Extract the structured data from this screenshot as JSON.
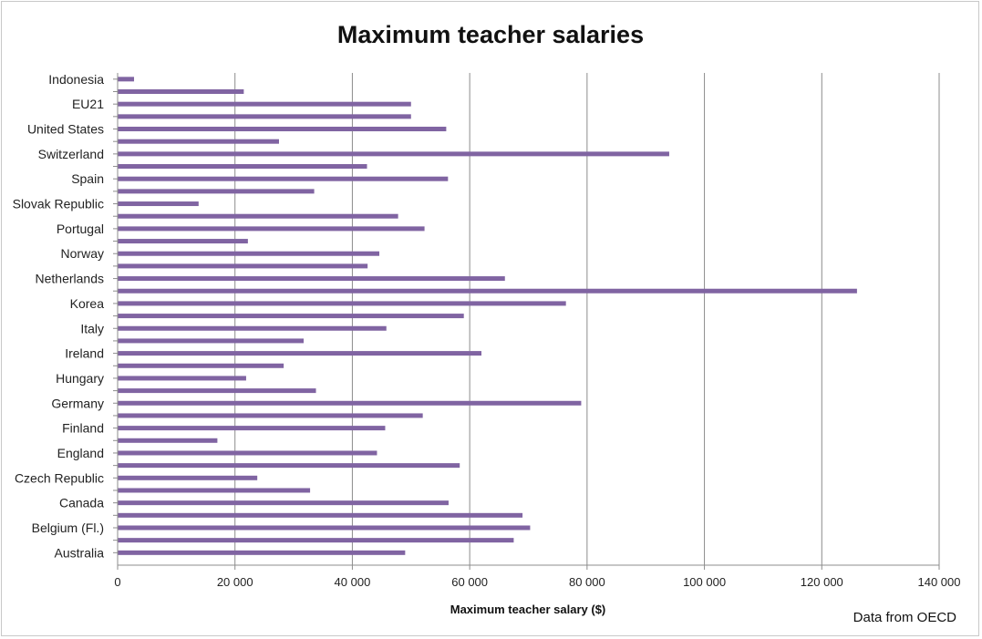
{
  "chart_data": {
    "type": "bar",
    "orientation": "horizontal",
    "title": "Maximum teacher salaries",
    "xlabel": "Maximum teacher salary ($)",
    "ylabel": "",
    "note": "Data from OECD",
    "xlim": [
      0,
      140000
    ],
    "x_ticks": [
      0,
      20000,
      40000,
      60000,
      80000,
      100000,
      120000,
      140000
    ],
    "x_tick_labels": [
      "0",
      "20 000",
      "40 000",
      "60 000",
      "80 000",
      "100 000",
      "120 000",
      "140 000"
    ],
    "grid": "vertical",
    "legend": "none",
    "bar_color": "#8064a2",
    "categories": [
      "Indonesia",
      "",
      "EU21",
      "",
      "United States",
      "",
      "Switzerland",
      "",
      "Spain",
      "",
      "Slovak Republic",
      "",
      "Portugal",
      "",
      "Norway",
      "",
      "Netherlands",
      "",
      "Korea",
      "",
      "Italy",
      "",
      "Ireland",
      "",
      "Hungary",
      "",
      "Germany",
      "",
      "Finland",
      "",
      "England",
      "",
      "Czech Republic",
      "",
      "Canada",
      "",
      "Belgium (Fl.)",
      "",
      "Australia"
    ],
    "values": [
      2800,
      21500,
      50000,
      50000,
      56000,
      27500,
      94000,
      42500,
      56300,
      33500,
      13800,
      47800,
      52300,
      22200,
      44600,
      42600,
      66000,
      126000,
      76400,
      59000,
      45800,
      31700,
      62000,
      28300,
      21900,
      33800,
      79000,
      52000,
      45600,
      17000,
      44200,
      58300,
      23800,
      32800,
      56400,
      69000,
      70300,
      67500,
      49000
    ]
  }
}
